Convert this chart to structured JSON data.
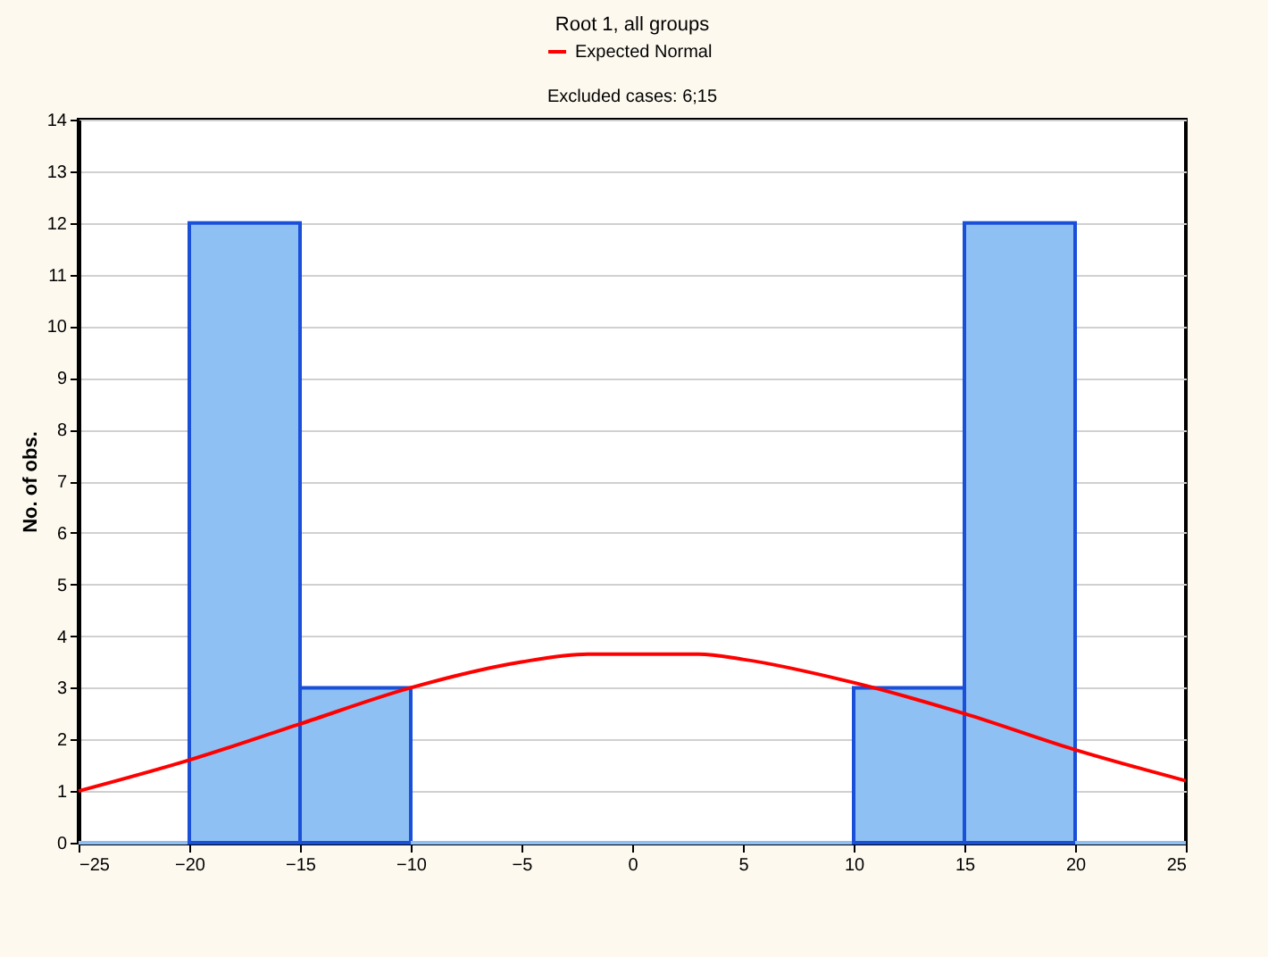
{
  "chart_data": {
    "type": "histogram",
    "title": "Root 1, all groups",
    "annotations": [
      "Excluded cases: 6;15"
    ],
    "ylabel": "No. of obs.",
    "bins": [
      -25,
      -20,
      -15,
      -10,
      -5,
      0,
      5,
      10,
      15,
      20,
      25
    ],
    "values": [
      0,
      12,
      3,
      0,
      0,
      0,
      0,
      3,
      12,
      0
    ],
    "color": "#8ec0f4",
    "series": [
      {
        "type": "line",
        "name": "Expected Normal",
        "color": "#ff0000",
        "x": [
          -25,
          -20,
          -15,
          -10,
          -5,
          -2,
          0,
          3,
          5,
          10,
          15,
          20,
          25
        ],
        "values": [
          1,
          1.6,
          2.3,
          3.0,
          3.5,
          3.65,
          3.65,
          3.65,
          3.55,
          3.1,
          2.5,
          1.8,
          1.2
        ]
      }
    ],
    "xlim": [
      -25,
      25
    ],
    "xticks": [
      -25,
      -20,
      -15,
      -10,
      -5,
      0,
      5,
      10,
      15,
      20,
      25
    ],
    "ylim": [
      0,
      14
    ],
    "yticks": [
      0,
      1,
      2,
      3,
      4,
      5,
      6,
      7,
      8,
      9,
      10,
      11,
      12,
      13,
      14
    ],
    "grid": "y",
    "legend": "top"
  }
}
